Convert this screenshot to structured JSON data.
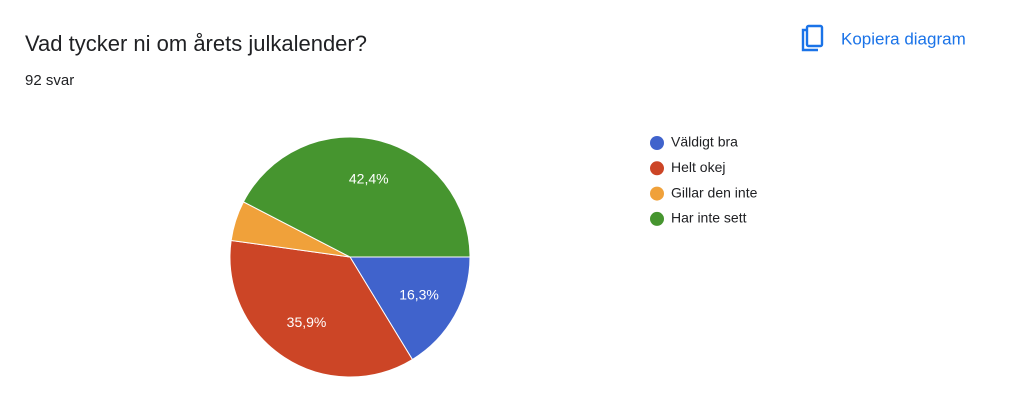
{
  "chart_data": {
    "type": "pie",
    "title": "Vad tycker ni om årets julkalender?",
    "subtitle": "92 svar",
    "action": "Kopiera diagram",
    "categories": [
      "Väldigt bra",
      "Helt okej",
      "Gillar den inte",
      "Har inte sett"
    ],
    "values": [
      16.3,
      35.9,
      5.4,
      42.4
    ],
    "value_labels": [
      "16,3%",
      "35,9%",
      null,
      "42,4%"
    ],
    "colors": [
      "#4063cc",
      "#cc4526",
      "#f0a13a",
      "#46952f"
    ],
    "legend": "right"
  }
}
